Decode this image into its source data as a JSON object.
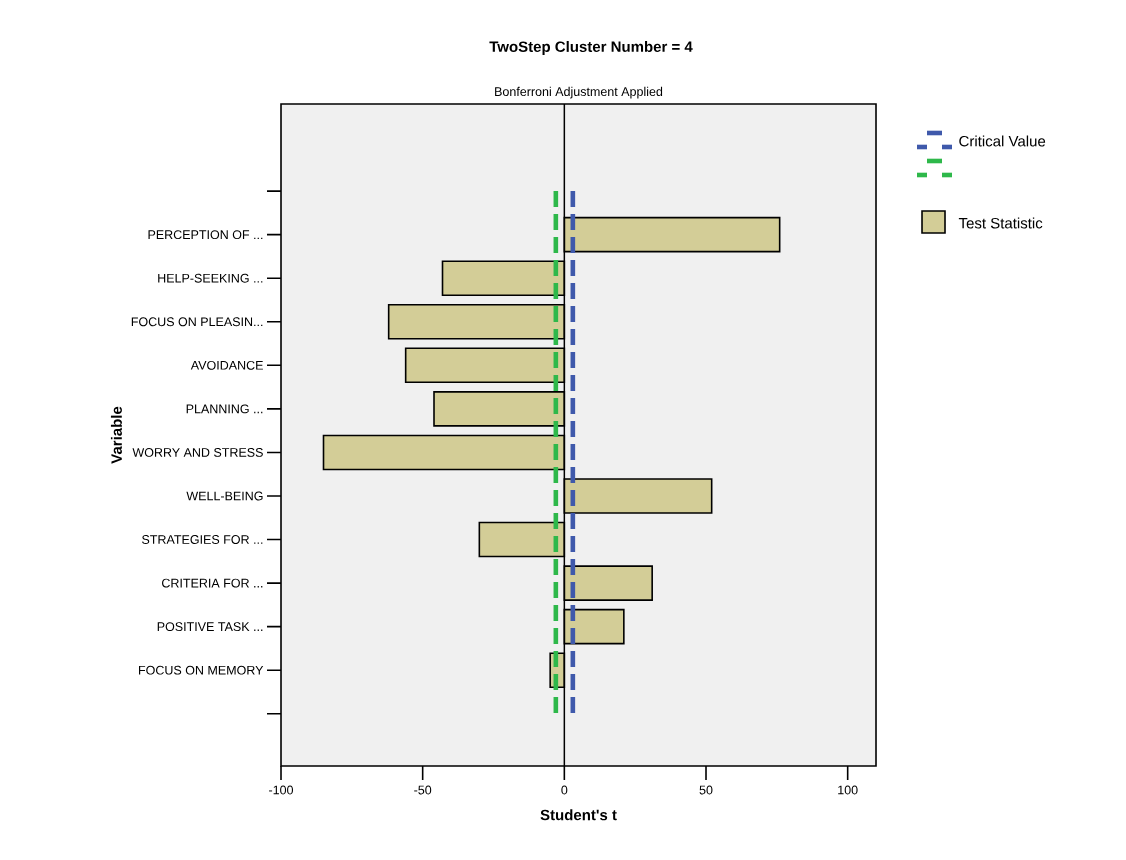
{
  "chart_data": {
    "type": "bar",
    "orientation": "horizontal",
    "title": "TwoStep Cluster Number = 4",
    "subtitle": "Bonferroni Adjustment Applied",
    "xlabel": "Student's t",
    "ylabel": "Variable",
    "categories": [
      "PERCEPTION OF ...",
      "HELP-SEEKING ...",
      "FOCUS ON PLEASIN...",
      "AVOIDANCE",
      "PLANNING ...",
      "WORRY AND STRESS",
      "WELL-BEING",
      "STRATEGIES FOR ...",
      "CRITERIA FOR ...",
      "POSITIVE TASK ...",
      "FOCUS ON MEMORY"
    ],
    "series": [
      {
        "name": "Test Statistic",
        "color": "#d3cd97",
        "values": [
          76,
          -43,
          -62,
          -56,
          -46,
          -85,
          52,
          -30,
          31,
          21,
          -5
        ]
      }
    ],
    "xlim": [
      -100,
      110
    ],
    "xticks": [
      -100,
      -50,
      0,
      50,
      100
    ],
    "ref_lines": [
      {
        "axis": "x",
        "value": 3,
        "label": "Critical Value",
        "color": "#3f59ab",
        "line_style": "dashed"
      },
      {
        "axis": "x",
        "value": -3,
        "color": "#2eb84a",
        "line_style": "dashed"
      },
      {
        "axis": "x",
        "value": 0,
        "color": "#000000",
        "line_style": "solid"
      }
    ],
    "grid": false,
    "legend": "top right"
  }
}
